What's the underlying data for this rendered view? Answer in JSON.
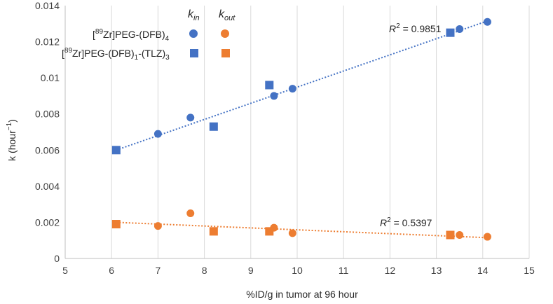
{
  "chart_data": {
    "type": "scatter",
    "xlabel": "%ID/g in tumor at 96 hour",
    "ylabel": "k (hour",
    "ylabel_exp": "−1",
    "ylabel_close": ")",
    "xlim": [
      5,
      15
    ],
    "ylim": [
      0,
      0.014
    ],
    "x_ticks": [
      "5",
      "6",
      "7",
      "8",
      "9",
      "10",
      "11",
      "12",
      "13",
      "14",
      "15"
    ],
    "y_ticks": [
      "0",
      "0.002",
      "0.004",
      "0.006",
      "0.008",
      "0.01",
      "0.012",
      "0.014"
    ],
    "grid": "vertical",
    "legend_header": {
      "kin_main": "k",
      "kin_sub": "in",
      "kout_main": "k",
      "kout_sub": "out"
    },
    "compounds": [
      {
        "name": "[89Zr]PEG-(DFB)4",
        "parts": [
          "[",
          "89",
          "Zr]PEG-(DFB)",
          "4",
          ""
        ],
        "marker": "circle"
      },
      {
        "name": "[89Zr]PEG-(DFB)1-(TLZ)3",
        "parts": [
          "[",
          "89",
          "Zr]PEG-(DFB)",
          "1",
          "-(TLZ)",
          "3"
        ],
        "marker": "square"
      }
    ],
    "series": [
      {
        "name": "kin [89Zr]PEG-(DFB)4",
        "color": "#4472C4",
        "marker": "circle",
        "x": [
          7.0,
          7.7,
          9.5,
          9.9,
          13.5,
          14.1
        ],
        "y": [
          0.0069,
          0.0078,
          0.009,
          0.0094,
          0.0127,
          0.0131
        ]
      },
      {
        "name": "kin [89Zr]PEG-(DFB)1-(TLZ)3",
        "color": "#4472C4",
        "marker": "square",
        "x": [
          6.1,
          8.2,
          9.4,
          13.3
        ],
        "y": [
          0.006,
          0.0073,
          0.0096,
          0.0125
        ]
      },
      {
        "name": "kout [89Zr]PEG-(DFB)4",
        "color": "#ED7D31",
        "marker": "circle",
        "x": [
          7.0,
          7.7,
          9.5,
          9.9,
          13.5,
          14.1
        ],
        "y": [
          0.0018,
          0.0025,
          0.0017,
          0.0014,
          0.0013,
          0.0012
        ]
      },
      {
        "name": "kout [89Zr]PEG-(DFB)1-(TLZ)3",
        "color": "#ED7D31",
        "marker": "square",
        "x": [
          6.1,
          8.2,
          9.4,
          13.3
        ],
        "y": [
          0.0019,
          0.0015,
          0.0015,
          0.0013
        ]
      }
    ],
    "trendlines": [
      {
        "name": "kin fit",
        "color": "#4472C4",
        "x": [
          6.1,
          14.1
        ],
        "y": [
          0.006,
          0.01315
        ],
        "r2_label": "R",
        "r2_exp": "2",
        "r2_value": " = 0.9851"
      },
      {
        "name": "kout fit",
        "color": "#ED7D31",
        "x": [
          6.1,
          14.1
        ],
        "y": [
          0.002,
          0.00115
        ],
        "r2_label": "R",
        "r2_exp": "2",
        "r2_value": " = 0.5397"
      }
    ]
  }
}
